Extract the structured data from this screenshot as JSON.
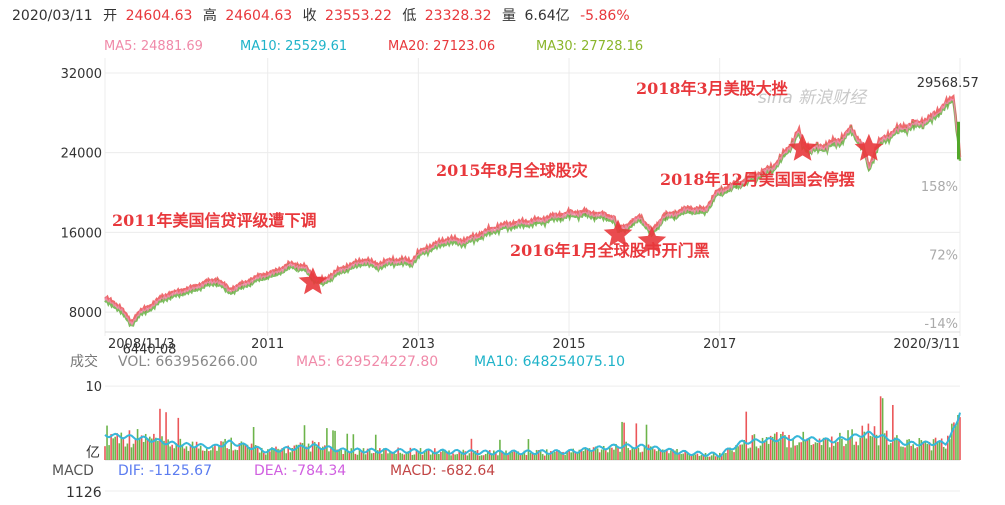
{
  "quote_header": {
    "date": "2020/03/11",
    "open_label": "开",
    "open": "24604.63",
    "high_label": "高",
    "high": "24604.63",
    "close_label": "收",
    "close": "23553.22",
    "low_label": "低",
    "low": "23328.32",
    "volume_label": "量",
    "volume": "6.64亿",
    "change": "-5.86%"
  },
  "ma_legend": [
    {
      "label": "MA5: 24881.69",
      "color": "#f08aa9"
    },
    {
      "label": "MA10: 25529.61",
      "color": "#1fb3c9"
    },
    {
      "label": "MA20: 27123.06",
      "color": "#e8383c"
    },
    {
      "label": "MA30: 27728.16",
      "color": "#8ab62c"
    }
  ],
  "watermark": "sina 新浪财经",
  "colors": {
    "up": "#e8383c",
    "down": "#52a72a",
    "annotation": "#e8383c",
    "vol_line": "#36b7d9"
  },
  "chart_data": [
    {
      "type": "line",
      "name": "price",
      "y_ticks": [
        "32000",
        "24000",
        "16000",
        "8000"
      ],
      "y_tick_values": [
        32000,
        24000,
        16000,
        8000
      ],
      "pct_ticks": [
        "158%",
        "72%",
        "-14%"
      ],
      "pct_tick_values": [
        158,
        72,
        -14
      ],
      "x_ticks": [
        "2008/11/3",
        "2011",
        "2013",
        "2015",
        "2017",
        "2020/3/11"
      ],
      "x_tick_values": [
        2008.84,
        2011.0,
        2013.0,
        2015.0,
        2017.0,
        2020.19
      ],
      "xlim": [
        2008.84,
        2020.19
      ],
      "ylim": [
        6000,
        33500
      ],
      "series": [
        {
          "x": [
            2008.84,
            2008.95,
            2009.05,
            2009.19,
            2009.3,
            2009.45,
            2009.6,
            2009.8,
            2010.0,
            2010.2,
            2010.33,
            2010.5,
            2010.7,
            2010.9,
            2011.1,
            2011.3,
            2011.5,
            2011.6,
            2011.75,
            2011.9,
            2012.1,
            2012.3,
            2012.45,
            2012.6,
            2012.8,
            2012.9,
            2013.0,
            2013.2,
            2013.4,
            2013.6,
            2013.8,
            2014.0,
            2014.2,
            2014.4,
            2014.6,
            2014.8,
            2015.0,
            2015.2,
            2015.4,
            2015.6,
            2015.65,
            2015.8,
            2015.95,
            2016.05,
            2016.1,
            2016.25,
            2016.4,
            2016.6,
            2016.8,
            2016.95,
            2017.1,
            2017.3,
            2017.5,
            2017.7,
            2017.9,
            2018.05,
            2018.1,
            2018.2,
            2018.4,
            2018.6,
            2018.75,
            2018.9,
            2018.98,
            2019.1,
            2019.3,
            2019.45,
            2019.6,
            2019.8,
            2019.95,
            2020.05,
            2020.1,
            2020.14,
            2020.17,
            2020.19
          ],
          "y": [
            9300,
            8800,
            8300,
            6800,
            7900,
            8500,
            9400,
            9900,
            10300,
            10900,
            11100,
            10100,
            10800,
            11500,
            11900,
            12700,
            12400,
            11400,
            11000,
            11900,
            12600,
            13100,
            12600,
            13000,
            13100,
            12900,
            13800,
            14600,
            15200,
            15000,
            15600,
            16300,
            16700,
            16900,
            17100,
            17500,
            17800,
            17900,
            17700,
            17400,
            16200,
            16700,
            17500,
            16400,
            15900,
            17500,
            17800,
            18300,
            18100,
            19800,
            20400,
            21000,
            21700,
            22400,
            24200,
            26100,
            24800,
            24300,
            24600,
            25200,
            26300,
            24600,
            22400,
            24800,
            26000,
            26500,
            26800,
            27300,
            28500,
            29000,
            29568.57,
            27100,
            25000,
            23553.22
          ]
        }
      ],
      "annotations": [
        {
          "text": "6440.08",
          "x": 2009.18,
          "y": 6440.08
        },
        {
          "text": "29568.57",
          "x": 2020.12,
          "y": 29568.57
        }
      ],
      "events": [
        {
          "text": "2011年美国信贷评级遭下调",
          "x": 2011.6,
          "y": 11400
        },
        {
          "text": "2015年8月全球股灾",
          "x": 2015.65,
          "y": 16200
        },
        {
          "text": "2016年1月全球股市开门黑",
          "x": 2016.1,
          "y": 15500
        },
        {
          "text": "2018年3月美股大挫",
          "x": 2018.1,
          "y": 24800
        },
        {
          "text": "2018年12月美国国会停摆",
          "x": 2018.98,
          "y": 24800
        }
      ]
    },
    {
      "type": "bar",
      "name": "volume",
      "unit": "亿",
      "y_ticks": [
        "10"
      ],
      "y_tick_values": [
        10
      ],
      "ylim": [
        0,
        11.5
      ],
      "legend": {
        "title": "成交",
        "vol": "VOL: 663956266.00",
        "ma5": "MA5: 629524227.80",
        "ma10": "MA10: 648254075.10"
      },
      "profile": {
        "x": [
          2008.84,
          2009.3,
          2009.8,
          2010.3,
          2010.5,
          2011.0,
          2011.6,
          2012.0,
          2013.0,
          2014.0,
          2015.0,
          2015.65,
          2016.0,
          2016.5,
          2017.0,
          2017.3,
          2018.0,
          2018.5,
          2018.98,
          2019.5,
          2020.0,
          2020.15,
          2020.19
        ],
        "y": [
          3.4,
          3.0,
          2.1,
          1.8,
          2.4,
          1.2,
          1.9,
          1.3,
          1.2,
          1.0,
          1.1,
          1.9,
          1.8,
          1.0,
          0.7,
          2.4,
          3.0,
          2.6,
          3.6,
          2.2,
          2.3,
          4.8,
          6.64
        ]
      }
    },
    {
      "type": "line",
      "name": "macd",
      "legend": {
        "title": "MACD",
        "dif": "DIF: -1125.67",
        "dea": "DEA: -784.34",
        "macd": "MACD: -682.64"
      },
      "y_ticks": [
        "1126"
      ],
      "y_tick_values": [
        1126
      ]
    }
  ]
}
